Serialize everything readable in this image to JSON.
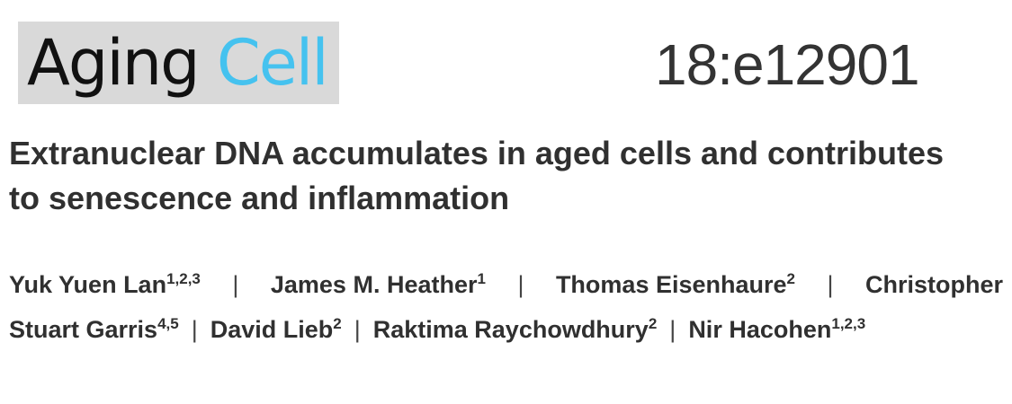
{
  "journal": {
    "name_part1": "Aging",
    "name_part2": "Cell",
    "colors": {
      "logo_background": "#d9d9d9",
      "aging": "#111111",
      "cell": "#45c2ef"
    }
  },
  "citation": "18:e12901",
  "title": {
    "line1": "Extranuclear DNA accumulates in aged cells and contributes",
    "line2": "to senescence and inflammation"
  },
  "authors": {
    "separator": "|",
    "line1": [
      {
        "name": "Yuk Yuen Lan",
        "affiliations": "1,2,3"
      },
      {
        "name": "James M. Heather",
        "affiliations": "1"
      },
      {
        "name": "Thomas Eisenhaure",
        "affiliations": "2"
      },
      {
        "name": "Christopher",
        "affiliations": ""
      }
    ],
    "line2": [
      {
        "name": "Stuart Garris",
        "affiliations": "4,5"
      },
      {
        "name": "David Lieb",
        "affiliations": "2"
      },
      {
        "name": "Raktima Raychowdhury",
        "affiliations": "2"
      },
      {
        "name": "Nir Hacohen",
        "affiliations": "1,2,3"
      }
    ]
  }
}
